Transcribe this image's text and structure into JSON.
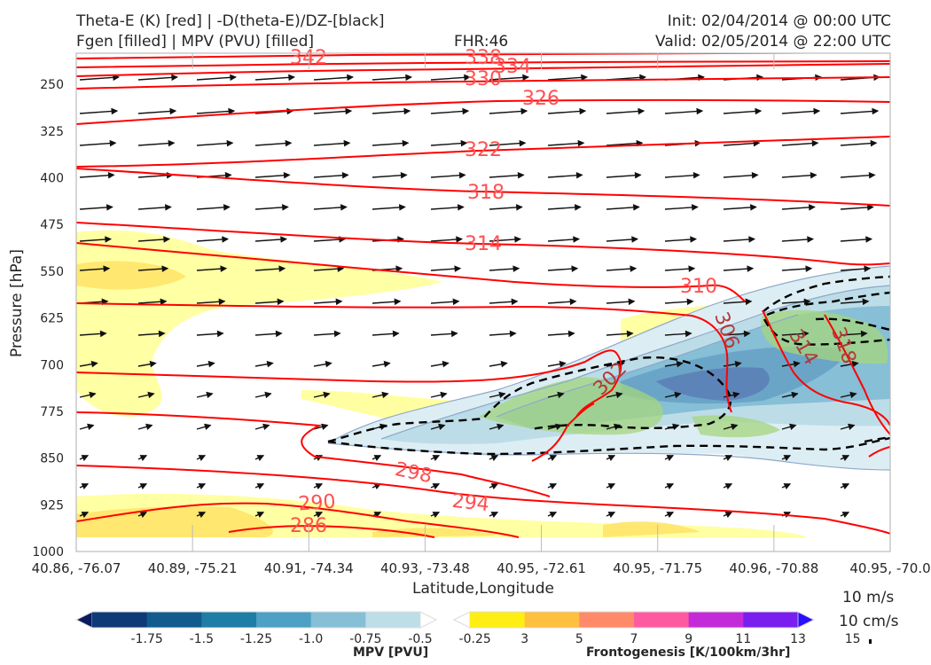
{
  "header": {
    "title_line1": "Theta-E (K) [red] | -D(theta-E)/DZ-[black]",
    "title_line2": "Fgen [filled] | MPV (PVU) [filled]",
    "fhr": "FHR:46",
    "init": "Init: 02/04/2014 @ 00:00 UTC",
    "valid": "Valid: 02/05/2014 @ 22:00 UTC"
  },
  "chart_data": {
    "type": "cross-section",
    "xlabel": "Latitude,Longitude",
    "ylabel": "Pressure [hPa]",
    "x_ticks": [
      "40.86, -76.07",
      "40.89, -75.21",
      "40.91, -74.34",
      "40.93, -73.48",
      "40.95, -72.61",
      "40.95, -71.75",
      "40.96, -70.88",
      "40.95, -70.0"
    ],
    "y_ticks": [
      250,
      325,
      400,
      475,
      550,
      625,
      700,
      775,
      850,
      925,
      1000
    ],
    "ylim": [
      1000,
      200
    ],
    "theta_e_contours": [
      {
        "label": "342",
        "value": 342
      },
      {
        "label": "338",
        "value": 338
      },
      {
        "label": "334",
        "value": 334
      },
      {
        "label": "330",
        "value": 330
      },
      {
        "label": "326",
        "value": 326
      },
      {
        "label": "322",
        "value": 322
      },
      {
        "label": "318",
        "value": 318
      },
      {
        "label": "314",
        "value": 314
      },
      {
        "label": "310",
        "value": 310
      },
      {
        "label": "306",
        "value": 306
      },
      {
        "label": "302",
        "value": 302
      },
      {
        "label": "298",
        "value": 298
      },
      {
        "label": "294",
        "value": 294
      },
      {
        "label": "290",
        "value": 290
      },
      {
        "label": "286",
        "value": 286
      },
      {
        "label": "314",
        "value": 314
      },
      {
        "label": "318",
        "value": 318
      }
    ],
    "mpv_colorbar": {
      "label": "MPV [PVU]",
      "ticks": [
        "-1.75",
        "-1.5",
        "-1.25",
        "-1.0",
        "-0.75",
        "-0.5",
        "-0.25"
      ],
      "colors": [
        "#0b1a5e",
        "#0f3a78",
        "#115b8f",
        "#1f7ea6",
        "#4ea0c4",
        "#86bfd6",
        "#bddde7",
        "#ffffff"
      ]
    },
    "fgen_colorbar": {
      "label": "Frontogenesis [K/100km/3hr]",
      "ticks": [
        "3",
        "5",
        "7",
        "9",
        "11",
        "13",
        "15"
      ],
      "colors": [
        "#ffffff",
        "#ffee14",
        "#ffbf3f",
        "#ff8a6a",
        "#ff5aa0",
        "#c42bd8",
        "#7a1ef0",
        "#2a10ff"
      ]
    },
    "wind_reference": [
      "10 m/s",
      "10 cm/s"
    ]
  }
}
